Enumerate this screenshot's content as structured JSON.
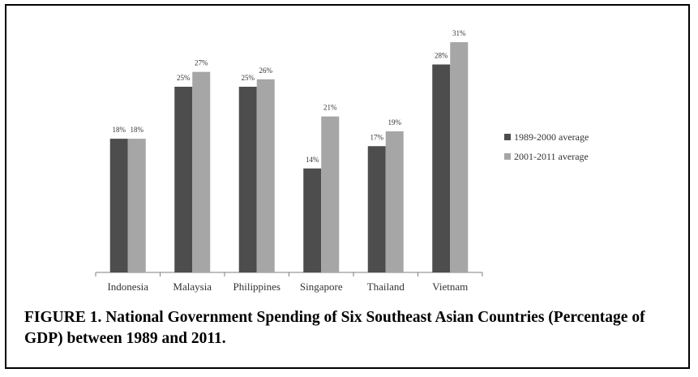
{
  "chart_data": {
    "type": "bar",
    "title": "",
    "xlabel": "",
    "ylabel": "",
    "categories": [
      "Indonesia",
      "Malaysia",
      "Philippines",
      "Singapore",
      "Thailand",
      "Vietnam"
    ],
    "series": [
      {
        "name": "1989-2000 average",
        "values": [
          18,
          25,
          25,
          14,
          17,
          28
        ],
        "labels": [
          "18%",
          "25%",
          "25%",
          "14%",
          "17%",
          "28%"
        ],
        "color": "#4d4d4d"
      },
      {
        "name": "2001-2011 average",
        "values": [
          18,
          27,
          26,
          21,
          19,
          31
        ],
        "labels": [
          "18%",
          "27%",
          "26%",
          "21%",
          "19%",
          "31%"
        ],
        "color": "#a6a6a6"
      }
    ],
    "ylim": [
      0,
      33
    ],
    "grid": false,
    "legend_position": "right"
  },
  "caption": "FIGURE 1. National Government Spending of Six Southeast Asian Countries (Percentage of GDP) between 1989 and 2011."
}
